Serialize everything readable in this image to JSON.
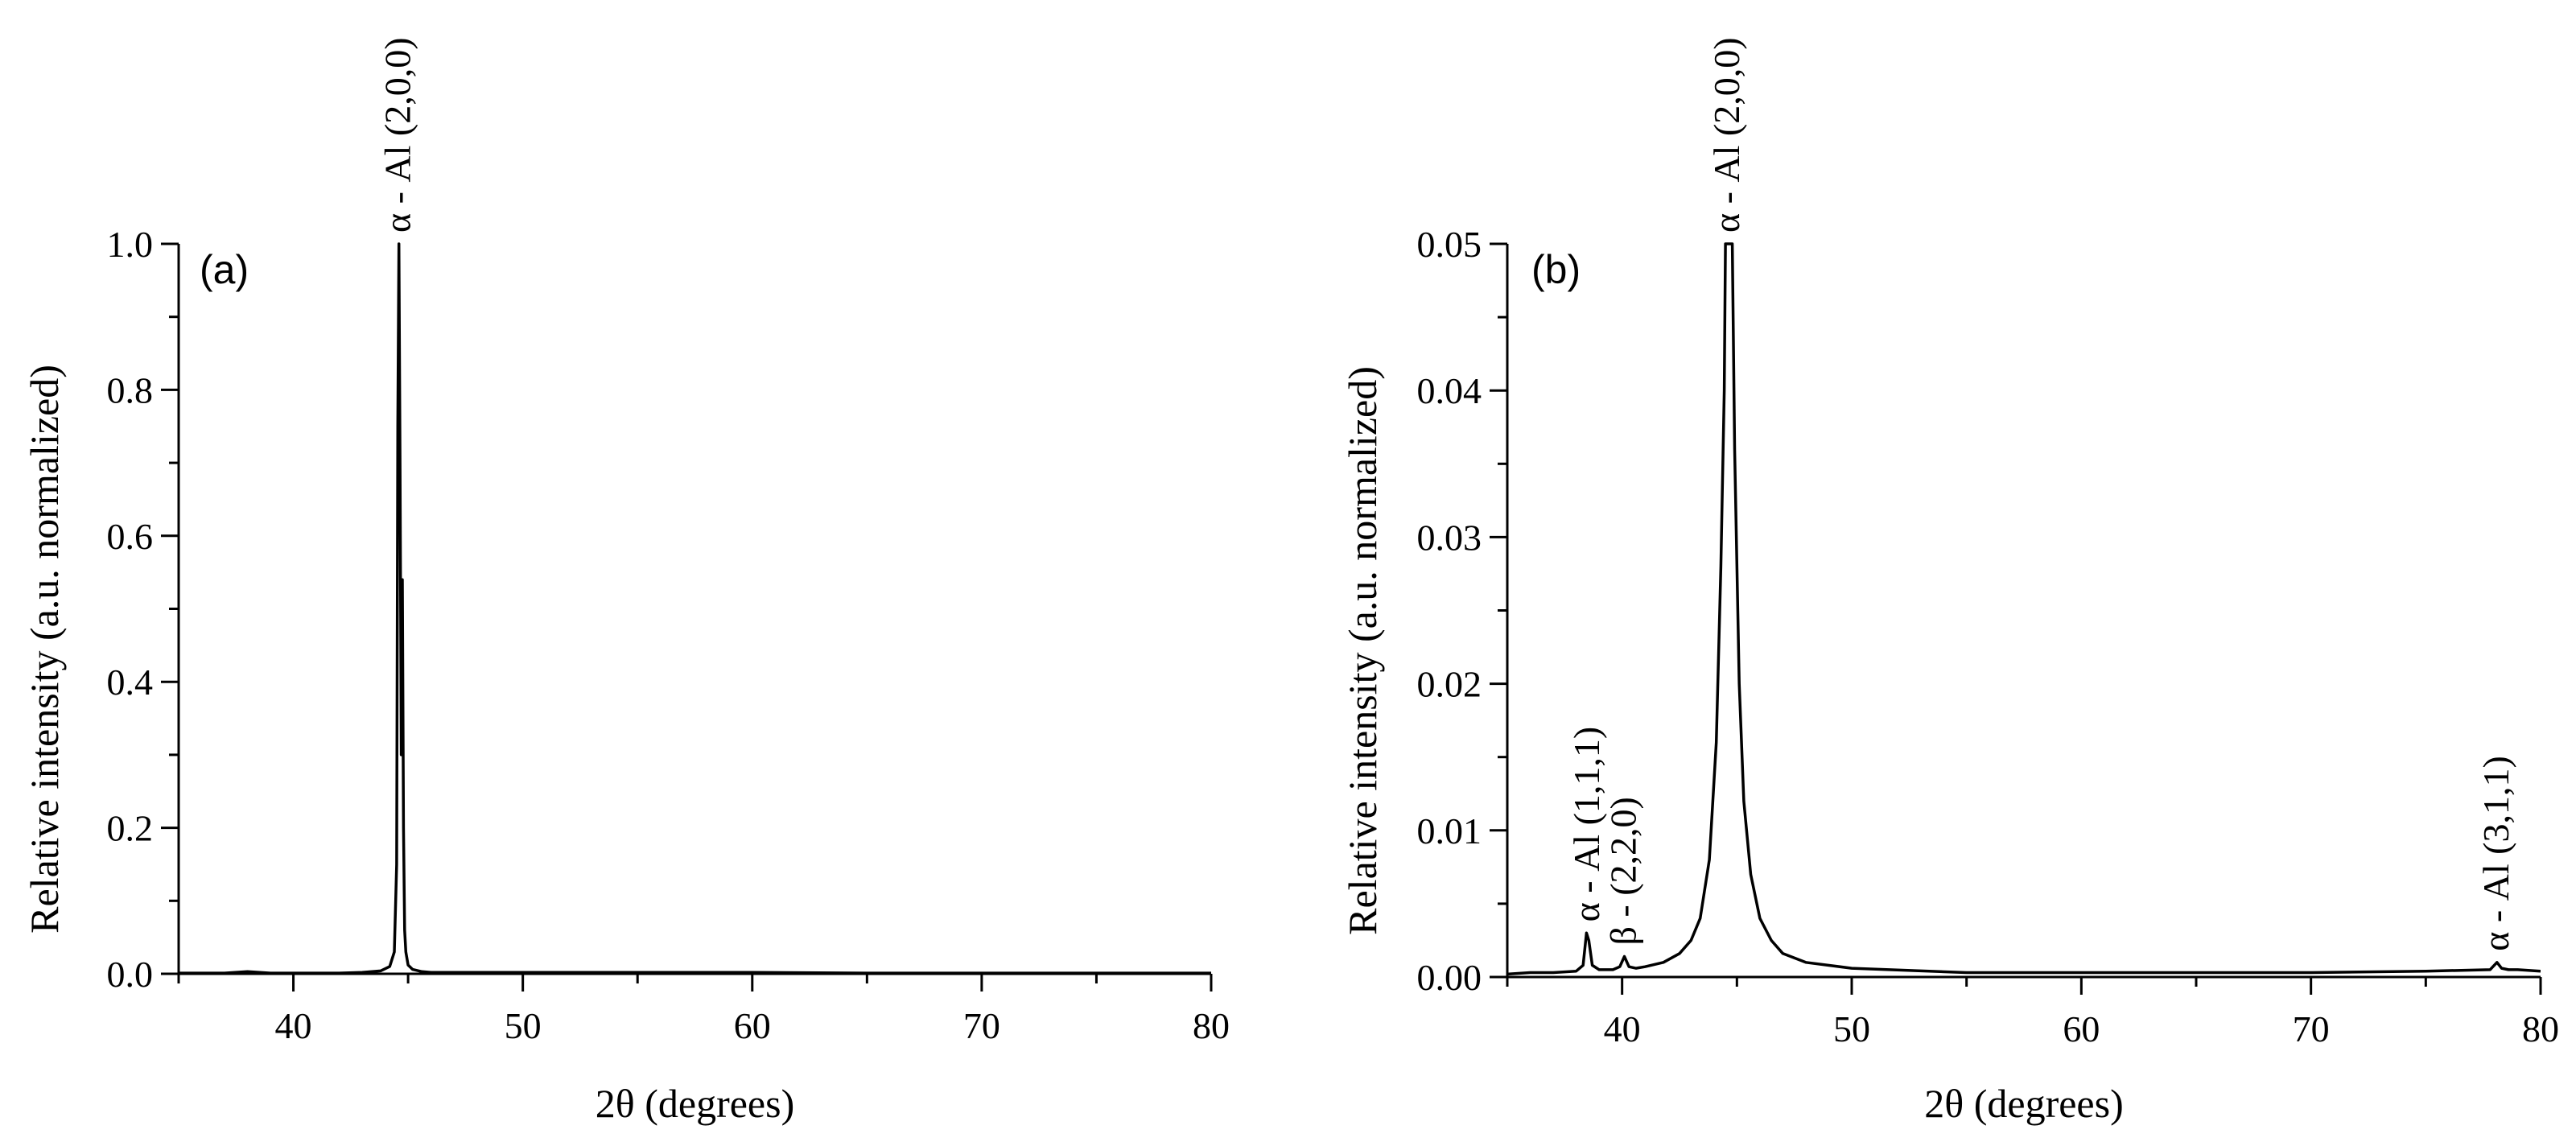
{
  "chart_data": [
    {
      "type": "line",
      "panel_label": "(a)",
      "xlabel": "2θ (degrees)",
      "ylabel": "Relative intensity (a.u. normalized)",
      "xlim": [
        35,
        80
      ],
      "ylim": [
        0,
        1.0
      ],
      "xticks": [
        "40",
        "50",
        "60",
        "70",
        "80"
      ],
      "yticks": [
        "0.0",
        "0.2",
        "0.4",
        "0.6",
        "0.8",
        "1.0"
      ],
      "grid": false,
      "legend": "none",
      "line_color": "#000000",
      "series": [
        {
          "x": [
            35,
            36,
            37,
            38,
            39,
            40,
            41,
            42,
            43,
            43.8,
            44.2,
            44.4,
            44.5,
            44.55,
            44.6,
            44.65,
            44.7,
            44.75,
            44.8,
            44.85,
            44.9,
            45.0,
            45.2,
            45.6,
            46,
            48,
            50,
            55,
            60,
            65,
            70,
            75,
            78,
            80
          ],
          "y": [
            0.001,
            0.001,
            0.001,
            0.003,
            0.001,
            0.001,
            0.001,
            0.001,
            0.002,
            0.004,
            0.01,
            0.03,
            0.15,
            0.75,
            1.0,
            0.7,
            0.3,
            0.54,
            0.2,
            0.06,
            0.03,
            0.012,
            0.006,
            0.003,
            0.002,
            0.002,
            0.002,
            0.002,
            0.002,
            0.001,
            0.001,
            0.001,
            0.001,
            0.001
          ]
        }
      ],
      "annotations": [
        {
          "text": "α - Al (2,0,0)",
          "x": 44.6,
          "y": 1.0
        }
      ]
    },
    {
      "type": "line",
      "panel_label": "(b)",
      "xlabel": "2θ (degrees)",
      "ylabel": "Relative intensity (a.u. normalized)",
      "xlim": [
        35,
        80
      ],
      "ylim": [
        0,
        0.05
      ],
      "xticks": [
        "40",
        "50",
        "60",
        "70",
        "80"
      ],
      "yticks": [
        "0.00",
        "0.01",
        "0.02",
        "0.03",
        "0.04",
        "0.05"
      ],
      "grid": false,
      "legend": "none",
      "line_color": "#000000",
      "series": [
        {
          "x": [
            35,
            36,
            37,
            38,
            38.3,
            38.45,
            38.55,
            38.7,
            39,
            39.6,
            39.9,
            40.1,
            40.3,
            40.6,
            41,
            41.8,
            42.5,
            43,
            43.4,
            43.8,
            44.1,
            44.3,
            44.45,
            44.5,
            44.6,
            44.7,
            44.8,
            44.9,
            45.1,
            45.3,
            45.6,
            46,
            46.5,
            47,
            48,
            50,
            55,
            60,
            65,
            70,
            75,
            77.8,
            78.1,
            78.3,
            78.6,
            79,
            80
          ],
          "y": [
            0.0002,
            0.0003,
            0.0003,
            0.0004,
            0.0008,
            0.003,
            0.0025,
            0.0008,
            0.0005,
            0.0005,
            0.0007,
            0.0014,
            0.0007,
            0.0006,
            0.0007,
            0.001,
            0.0016,
            0.0025,
            0.004,
            0.008,
            0.016,
            0.028,
            0.04,
            0.05,
            0.05,
            0.05,
            0.05,
            0.036,
            0.02,
            0.012,
            0.007,
            0.004,
            0.0025,
            0.0016,
            0.001,
            0.0006,
            0.0003,
            0.0003,
            0.0003,
            0.0003,
            0.0004,
            0.0005,
            0.001,
            0.0006,
            0.0005,
            0.0005,
            0.0004
          ]
        }
      ],
      "annotations": [
        {
          "text": "α - Al (2,0,0)",
          "x": 44.6,
          "y": 0.05
        },
        {
          "text": "α - Al (1,1,1)",
          "x": 38.5,
          "y": 0.003
        },
        {
          "text": "β - (2,2,0)",
          "x": 40.1,
          "y": 0.0014
        },
        {
          "text": "α - Al (3,1,1)",
          "x": 78.1,
          "y": 0.001
        }
      ]
    }
  ]
}
